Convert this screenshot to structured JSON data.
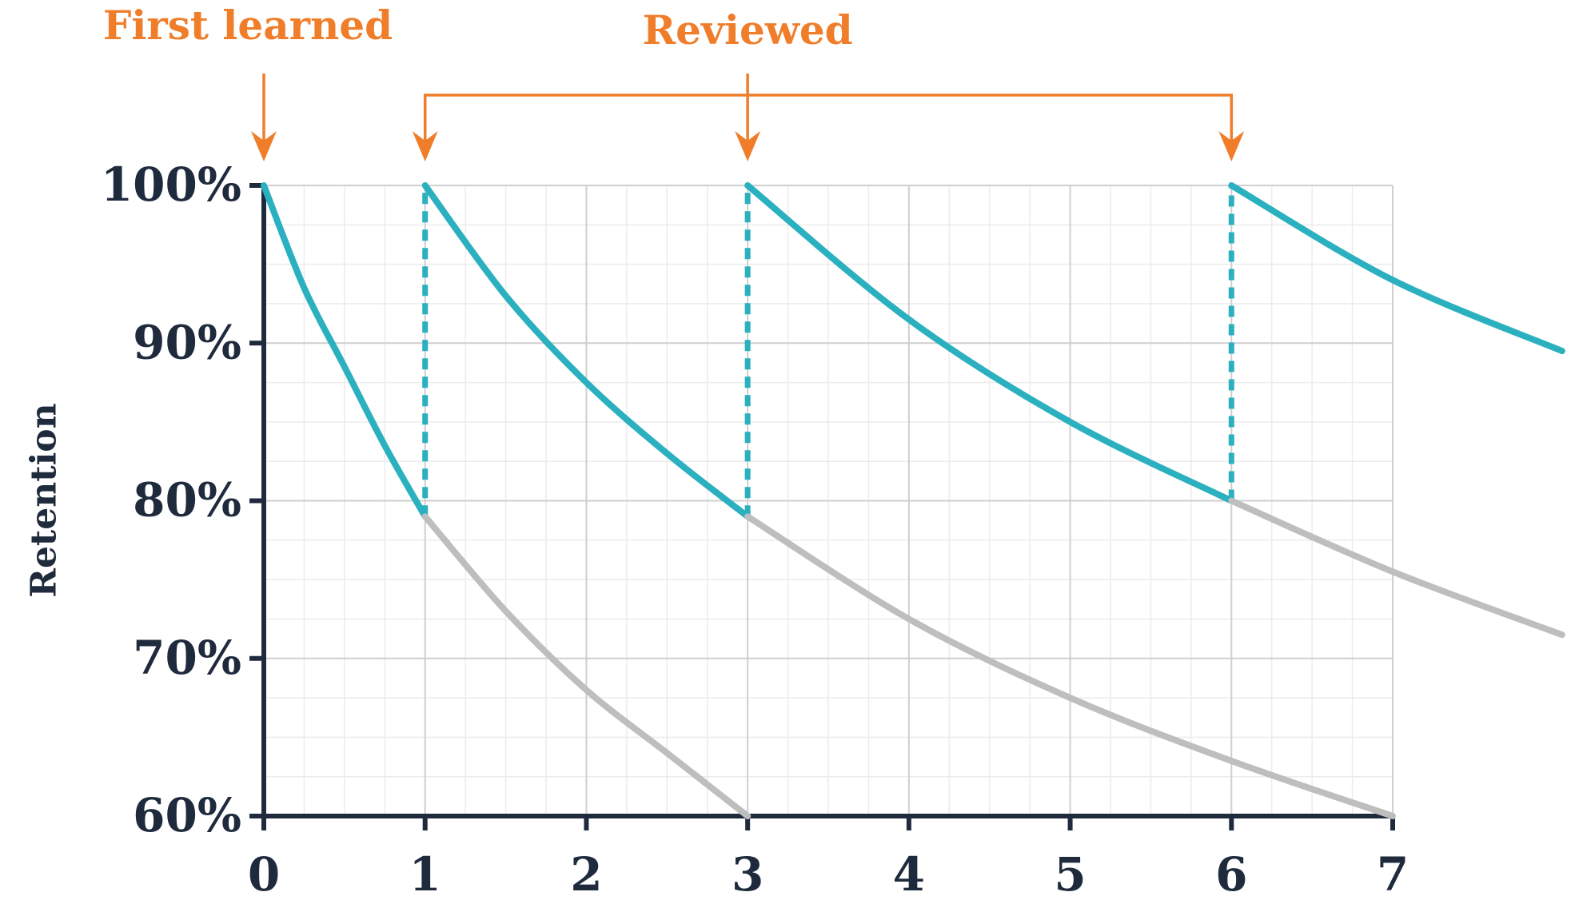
{
  "chart_data": {
    "type": "line",
    "ylabel": "Retention",
    "xlim": [
      0,
      7
    ],
    "ylim": [
      60,
      100
    ],
    "xticks": [
      0,
      1,
      2,
      3,
      4,
      5,
      6,
      7
    ],
    "yticks": [
      {
        "value": 60,
        "label": "60%"
      },
      {
        "value": 70,
        "label": "70%"
      },
      {
        "value": 80,
        "label": "80%"
      },
      {
        "value": 90,
        "label": "90%"
      },
      {
        "value": 100,
        "label": "100%"
      }
    ],
    "grid": true,
    "minor_divisions": 4,
    "review_color": "#2ab0bf",
    "forget_color": "#bebebe",
    "curves": [
      {
        "kind": "review",
        "x": [
          0,
          0.25,
          0.5,
          0.75,
          1
        ],
        "values": [
          100,
          93.5,
          88.5,
          83.5,
          79
        ]
      },
      {
        "kind": "forget",
        "x": [
          1,
          1.5,
          2,
          2.5,
          3
        ],
        "values": [
          79,
          73,
          68,
          64,
          60
        ]
      },
      {
        "kind": "review",
        "x": [
          1,
          1.5,
          2,
          2.5,
          3
        ],
        "values": [
          100,
          93,
          87.5,
          83,
          79
        ]
      },
      {
        "kind": "forget",
        "x": [
          3,
          4,
          5,
          6,
          7
        ],
        "values": [
          79,
          72.5,
          67.5,
          63.5,
          60
        ]
      },
      {
        "kind": "review",
        "x": [
          3,
          4,
          5,
          6
        ],
        "values": [
          100,
          91.5,
          85,
          80
        ]
      },
      {
        "kind": "forget",
        "x": [
          6,
          7,
          8.05
        ],
        "values": [
          80,
          75.5,
          71.5
        ]
      },
      {
        "kind": "review",
        "x": [
          6,
          7,
          8.05
        ],
        "values": [
          100,
          94,
          89.5
        ]
      }
    ],
    "annotations": [
      {
        "text": "First learned",
        "x": [
          0
        ]
      },
      {
        "text": "Reviewed",
        "x": [
          1,
          3,
          6
        ]
      }
    ]
  }
}
